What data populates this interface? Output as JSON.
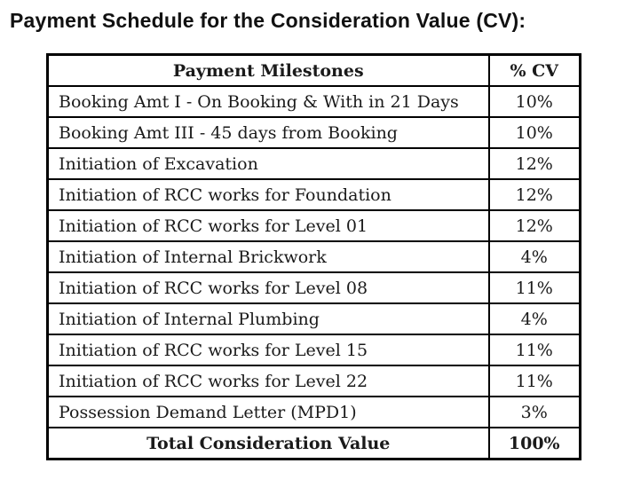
{
  "title": "Payment Schedule for the Consideration Value (CV):",
  "colors": {
    "background": "#ffffff",
    "text": "#1a1a1a",
    "border": "#000000"
  },
  "table": {
    "headers": [
      "Payment Milestones",
      "% CV"
    ],
    "rows": [
      {
        "milestone": "Booking Amt I - On Booking & With in 21 Days",
        "percent_cv": "10%"
      },
      {
        "milestone": "Booking Amt III - 45 days from Booking",
        "percent_cv": "10%"
      },
      {
        "milestone": "Initiation of Excavation",
        "percent_cv": "12%"
      },
      {
        "milestone": "Initiation of RCC works for Foundation",
        "percent_cv": "12%"
      },
      {
        "milestone": "Initiation of RCC works for Level 01",
        "percent_cv": "12%"
      },
      {
        "milestone": "Initiation of Internal Brickwork",
        "percent_cv": "4%"
      },
      {
        "milestone": "Initiation of RCC works for Level 08",
        "percent_cv": "11%"
      },
      {
        "milestone": "Initiation of Internal Plumbing",
        "percent_cv": "4%"
      },
      {
        "milestone": "Initiation of RCC works for Level 15",
        "percent_cv": "11%"
      },
      {
        "milestone": "Initiation of RCC works for Level 22",
        "percent_cv": "11%"
      },
      {
        "milestone": "Possession Demand Letter (MPD1)",
        "percent_cv": "3%"
      }
    ],
    "total": {
      "label": "Total Consideration Value",
      "percent_cv": "100%"
    }
  }
}
